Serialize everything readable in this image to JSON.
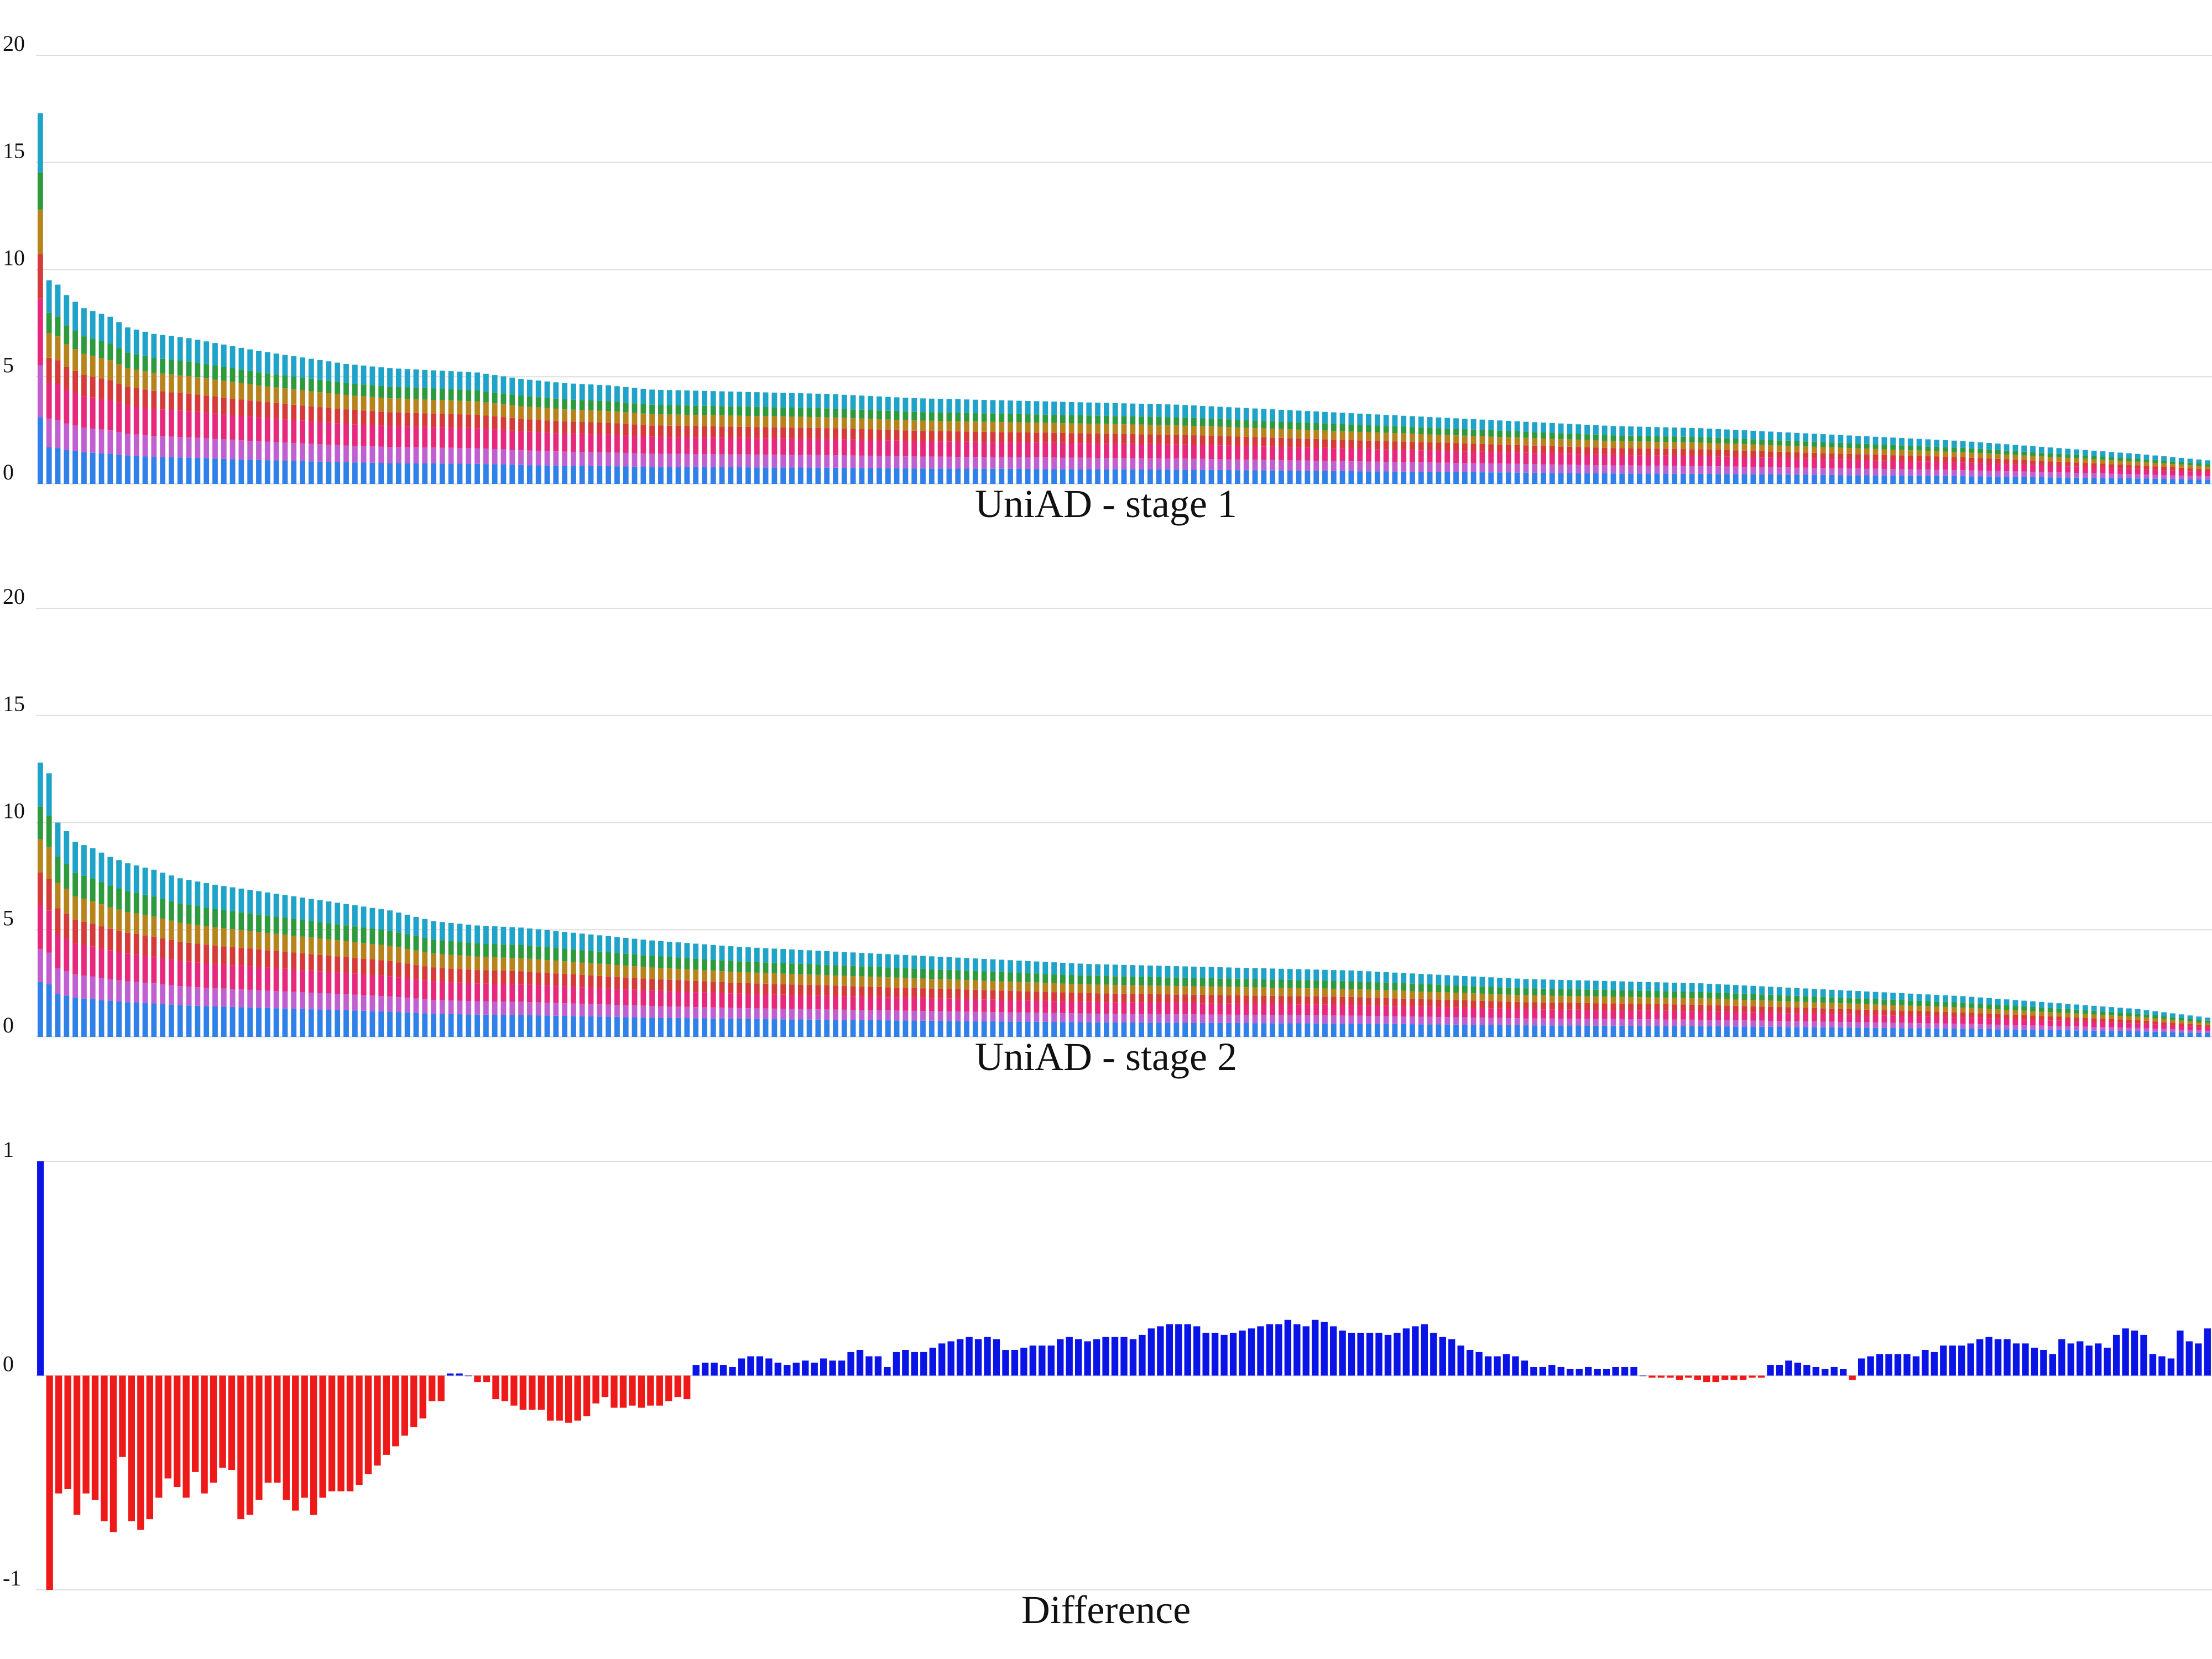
{
  "chart_data": [
    {
      "id": "stage1",
      "type": "bar",
      "stacked": true,
      "title": "UniAD - stage 1",
      "xlabel": "",
      "ylabel": "",
      "ylim": [
        0,
        20
      ],
      "yticks": [
        0,
        5,
        10,
        15,
        20
      ],
      "grid": true,
      "legend": "none",
      "segment_fractions": [
        0.18,
        0.14,
        0.18,
        0.12,
        0.12,
        0.1,
        0.16
      ],
      "segment_colors": [
        "#2f80e8",
        "#c060d0",
        "#e8287c",
        "#d63a3a",
        "#b7841c",
        "#2e9a3e",
        "#1fa3c8"
      ],
      "n_bars": 249,
      "totals_anchor": [
        [
          0,
          17.3
        ],
        [
          1,
          9.5
        ],
        [
          2,
          9.3
        ],
        [
          3,
          8.8
        ],
        [
          5,
          8.2
        ],
        [
          8,
          7.8
        ],
        [
          10,
          7.3
        ],
        [
          13,
          7.0
        ],
        [
          17,
          6.8
        ],
        [
          21,
          6.5
        ],
        [
          25,
          6.2
        ],
        [
          30,
          5.9
        ],
        [
          35,
          5.6
        ],
        [
          40,
          5.4
        ],
        [
          45,
          5.3
        ],
        [
          50,
          5.2
        ],
        [
          55,
          4.9
        ],
        [
          60,
          4.7
        ],
        [
          65,
          4.6
        ],
        [
          70,
          4.4
        ],
        [
          80,
          4.3
        ],
        [
          90,
          4.2
        ],
        [
          100,
          4.0
        ],
        [
          110,
          3.9
        ],
        [
          120,
          3.8
        ],
        [
          130,
          3.7
        ],
        [
          140,
          3.5
        ],
        [
          150,
          3.3
        ],
        [
          160,
          3.1
        ],
        [
          170,
          2.9
        ],
        [
          180,
          2.7
        ],
        [
          190,
          2.6
        ],
        [
          200,
          2.4
        ],
        [
          210,
          2.2
        ],
        [
          220,
          2.0
        ],
        [
          230,
          1.7
        ],
        [
          240,
          1.4
        ],
        [
          248,
          1.1
        ]
      ]
    },
    {
      "id": "stage2",
      "type": "bar",
      "stacked": true,
      "title": "UniAD - stage 2",
      "xlabel": "",
      "ylabel": "",
      "ylim": [
        0,
        20
      ],
      "yticks": [
        0,
        5,
        10,
        15,
        20
      ],
      "grid": true,
      "legend": "none",
      "segment_fractions": [
        0.2,
        0.12,
        0.16,
        0.12,
        0.12,
        0.12,
        0.16
      ],
      "segment_colors": [
        "#2f80e8",
        "#c060d0",
        "#e8287c",
        "#d63a3a",
        "#b7841c",
        "#2e9a3e",
        "#1fa3c8"
      ],
      "n_bars": 249,
      "totals_anchor": [
        [
          0,
          12.8
        ],
        [
          1,
          12.3
        ],
        [
          2,
          10.0
        ],
        [
          3,
          9.6
        ],
        [
          4,
          9.1
        ],
        [
          6,
          8.8
        ],
        [
          8,
          8.4
        ],
        [
          10,
          8.1
        ],
        [
          13,
          7.8
        ],
        [
          16,
          7.4
        ],
        [
          20,
          7.1
        ],
        [
          25,
          6.8
        ],
        [
          30,
          6.5
        ],
        [
          35,
          6.2
        ],
        [
          40,
          5.9
        ],
        [
          45,
          5.4
        ],
        [
          50,
          5.2
        ],
        [
          55,
          5.1
        ],
        [
          60,
          4.9
        ],
        [
          65,
          4.7
        ],
        [
          70,
          4.5
        ],
        [
          80,
          4.2
        ],
        [
          90,
          4.0
        ],
        [
          100,
          3.8
        ],
        [
          110,
          3.6
        ],
        [
          120,
          3.4
        ],
        [
          130,
          3.3
        ],
        [
          140,
          3.2
        ],
        [
          150,
          3.1
        ],
        [
          160,
          2.9
        ],
        [
          170,
          2.7
        ],
        [
          180,
          2.6
        ],
        [
          190,
          2.5
        ],
        [
          200,
          2.3
        ],
        [
          210,
          2.1
        ],
        [
          220,
          1.9
        ],
        [
          230,
          1.6
        ],
        [
          240,
          1.3
        ],
        [
          248,
          0.9
        ]
      ]
    },
    {
      "id": "difference",
      "type": "bar",
      "title": "Difference",
      "xlabel": "",
      "ylabel": "",
      "ylim": [
        -1,
        1
      ],
      "yticks": [
        -1,
        0,
        1
      ],
      "grid": true,
      "legend": "none",
      "positive_color": "#0a14e6",
      "negative_color": "#ee1a1a",
      "values": [
        1.0,
        -1.0,
        -0.55,
        -0.53,
        -0.65,
        -0.55,
        -0.58,
        -0.68,
        -0.73,
        -0.38,
        -0.68,
        -0.72,
        -0.67,
        -0.57,
        -0.48,
        -0.52,
        -0.57,
        -0.45,
        -0.55,
        -0.5,
        -0.43,
        -0.44,
        -0.67,
        -0.65,
        -0.58,
        -0.5,
        -0.5,
        -0.58,
        -0.63,
        -0.57,
        -0.65,
        -0.57,
        -0.54,
        -0.54,
        -0.54,
        -0.51,
        -0.46,
        -0.42,
        -0.37,
        -0.33,
        -0.28,
        -0.24,
        -0.2,
        -0.12,
        -0.12,
        0.01,
        0.01,
        0.0,
        -0.03,
        -0.03,
        -0.11,
        -0.12,
        -0.14,
        -0.16,
        -0.16,
        -0.16,
        -0.21,
        -0.21,
        -0.22,
        -0.21,
        -0.19,
        -0.13,
        -0.1,
        -0.15,
        -0.15,
        -0.14,
        -0.15,
        -0.14,
        -0.14,
        -0.12,
        -0.1,
        -0.11,
        0.05,
        0.06,
        0.06,
        0.05,
        0.04,
        0.08,
        0.09,
        0.09,
        0.08,
        0.06,
        0.05,
        0.06,
        0.07,
        0.06,
        0.08,
        0.07,
        0.07,
        0.11,
        0.12,
        0.09,
        0.09,
        0.04,
        0.11,
        0.12,
        0.11,
        0.11,
        0.13,
        0.15,
        0.16,
        0.17,
        0.18,
        0.17,
        0.18,
        0.17,
        0.12,
        0.12,
        0.13,
        0.14,
        0.14,
        0.14,
        0.17,
        0.18,
        0.17,
        0.16,
        0.17,
        0.18,
        0.18,
        0.18,
        0.17,
        0.19,
        0.22,
        0.23,
        0.24,
        0.24,
        0.24,
        0.23,
        0.2,
        0.2,
        0.19,
        0.2,
        0.21,
        0.22,
        0.23,
        0.24,
        0.24,
        0.26,
        0.24,
        0.23,
        0.26,
        0.25,
        0.23,
        0.21,
        0.2,
        0.2,
        0.2,
        0.2,
        0.19,
        0.2,
        0.22,
        0.23,
        0.24,
        0.2,
        0.18,
        0.17,
        0.14,
        0.12,
        0.11,
        0.09,
        0.09,
        0.1,
        0.09,
        0.07,
        0.04,
        0.04,
        0.05,
        0.04,
        0.03,
        0.03,
        0.04,
        0.03,
        0.03,
        0.04,
        0.04,
        0.04,
        0.0,
        -0.01,
        -0.01,
        -0.01,
        -0.02,
        -0.01,
        -0.02,
        -0.03,
        -0.03,
        -0.02,
        -0.02,
        -0.02,
        -0.01,
        -0.01,
        0.05,
        0.05,
        0.07,
        0.06,
        0.05,
        0.04,
        0.03,
        0.04,
        0.03,
        -0.02,
        0.08,
        0.09,
        0.1,
        0.1,
        0.1,
        0.1,
        0.09,
        0.12,
        0.11,
        0.14,
        0.14,
        0.14,
        0.15,
        0.17,
        0.18,
        0.17,
        0.17,
        0.15,
        0.15,
        0.13,
        0.12,
        0.1,
        0.17,
        0.15,
        0.16,
        0.14,
        0.15,
        0.13,
        0.19,
        0.22,
        0.21,
        0.19,
        0.1,
        0.09,
        0.08,
        0.21,
        0.16,
        0.15,
        0.22
      ]
    }
  ]
}
